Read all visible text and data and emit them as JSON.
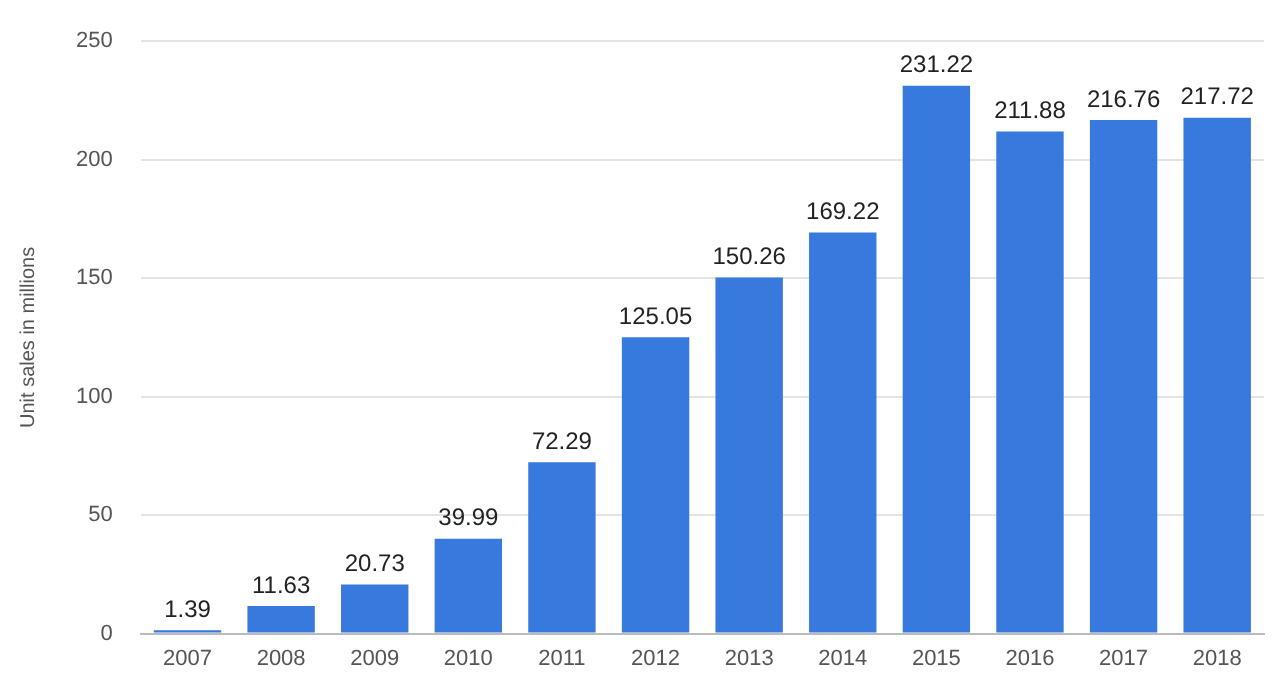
{
  "chart_data": {
    "type": "bar",
    "ylabel": "Unit sales in millions",
    "categories": [
      "2007",
      "2008",
      "2009",
      "2010",
      "2011",
      "2012",
      "2013",
      "2014",
      "2015",
      "2016",
      "2017",
      "2018"
    ],
    "values": [
      1.39,
      11.63,
      20.73,
      39.99,
      72.29,
      125.05,
      150.26,
      169.22,
      231.22,
      211.88,
      216.76,
      217.72
    ],
    "color": "#3779dc",
    "ylim": [
      0,
      250
    ],
    "yticks": [
      0,
      50,
      100,
      150,
      200,
      250
    ],
    "grid": "y",
    "data_labels": true,
    "legend": false
  }
}
